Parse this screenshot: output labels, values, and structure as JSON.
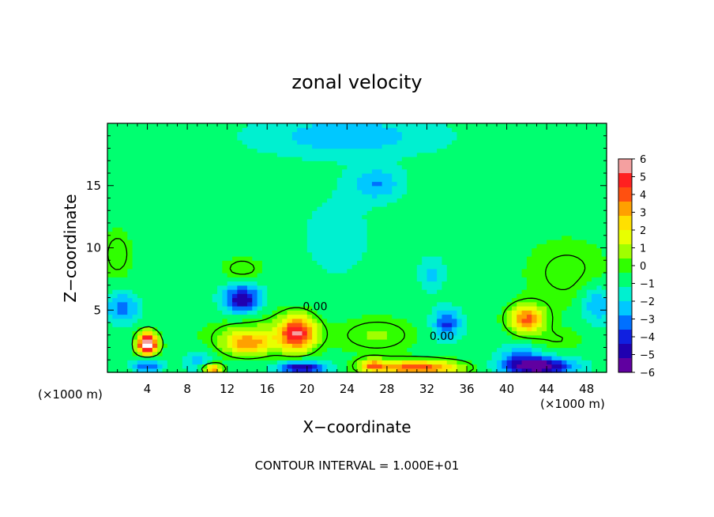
{
  "chart_data": {
    "type": "heatmap",
    "title": "zonal velocity",
    "xlabel": "X−coordinate",
    "ylabel": "Z−coordinate",
    "x_unit": "(×1000 m)",
    "footer": "CONTOUR INTERVAL = 1.000E+01",
    "xlim": [
      0,
      50
    ],
    "ylim": [
      0,
      20
    ],
    "x_ticks": [
      4,
      8,
      12,
      16,
      20,
      24,
      28,
      32,
      36,
      40,
      44,
      48
    ],
    "y_ticks": [
      5,
      10,
      15
    ],
    "colorbar": {
      "range": [
        -6,
        6
      ],
      "ticks": [
        6,
        5,
        4,
        3,
        2,
        1,
        0,
        -1,
        -2,
        -3,
        -4,
        -5,
        -6
      ],
      "tick_labels": [
        "6",
        "5",
        "4",
        "3",
        "2",
        "1",
        "0",
        "−1",
        "−2",
        "−3",
        "−4",
        "−5",
        "−6"
      ],
      "colors": [
        "#f4a0a0",
        "#ff2020",
        "#ff5010",
        "#ffa000",
        "#ffe000",
        "#e8ff00",
        "#a0ff00",
        "#30ff00",
        "#00ff70",
        "#00f0d0",
        "#00c8ff",
        "#0070ff",
        "#1020e0",
        "#2000b0",
        "#6000a0"
      ]
    },
    "background_value": -0.8,
    "features": [
      {
        "x": 4.0,
        "z": 2.3,
        "value": 8,
        "sx": 1.0,
        "sz": 0.9
      },
      {
        "x": 4.0,
        "z": 0.6,
        "value": -3,
        "sx": 1.4,
        "sz": 0.6
      },
      {
        "x": 1.5,
        "z": 5.2,
        "value": -2.5,
        "sx": 1.6,
        "sz": 1.2
      },
      {
        "x": 13.5,
        "z": 5.9,
        "value": -4.5,
        "sx": 1.8,
        "sz": 1.1
      },
      {
        "x": 19.0,
        "z": 3.2,
        "value": 5.5,
        "sx": 1.8,
        "sz": 1.4
      },
      {
        "x": 14.0,
        "z": 2.3,
        "value": 3.2,
        "sx": 2.2,
        "sz": 0.9
      },
      {
        "x": 19.5,
        "z": 0.4,
        "value": -4.5,
        "sx": 2.5,
        "sz": 0.5
      },
      {
        "x": 9.0,
        "z": 0.9,
        "value": -1.5,
        "sx": 1.5,
        "sz": 0.8
      },
      {
        "x": 10.5,
        "z": 0.3,
        "value": 4.5,
        "sx": 1.0,
        "sz": 0.4
      },
      {
        "x": 31.0,
        "z": 0.4,
        "value": 5.0,
        "sx": 4.5,
        "sz": 0.6
      },
      {
        "x": 26.5,
        "z": 0.6,
        "value": 3.0,
        "sx": 1.2,
        "sz": 0.5
      },
      {
        "x": 34.0,
        "z": 3.9,
        "value": -3.0,
        "sx": 1.4,
        "sz": 1.2
      },
      {
        "x": 32.5,
        "z": 7.9,
        "value": -1.5,
        "sx": 1.2,
        "sz": 1.4
      },
      {
        "x": 42.0,
        "z": 4.3,
        "value": 4.5,
        "sx": 1.8,
        "sz": 1.1
      },
      {
        "x": 43.0,
        "z": 0.5,
        "value": -5.5,
        "sx": 3.5,
        "sz": 0.7
      },
      {
        "x": 41.5,
        "z": 1.5,
        "value": -2.0,
        "sx": 2.0,
        "sz": 0.8
      },
      {
        "x": 49.0,
        "z": 5.5,
        "value": -2.2,
        "sx": 1.5,
        "sz": 1.5
      },
      {
        "x": 46.0,
        "z": 8.0,
        "value": 1.0,
        "sx": 4.5,
        "sz": 3.0
      },
      {
        "x": 45.0,
        "z": 2.6,
        "value": 0.8,
        "sx": 3.0,
        "sz": 1.0
      },
      {
        "x": 13.5,
        "z": 8.3,
        "value": 1.2,
        "sx": 2.0,
        "sz": 1.0
      },
      {
        "x": 1.0,
        "z": 9.5,
        "value": 1.2,
        "sx": 1.5,
        "sz": 2.0
      },
      {
        "x": 24.0,
        "z": 19.0,
        "value": -1.8,
        "sx": 9.0,
        "sz": 1.6
      },
      {
        "x": 27.0,
        "z": 15.2,
        "value": -2.0,
        "sx": 2.5,
        "sz": 1.3
      },
      {
        "x": 15.0,
        "z": 3.0,
        "value": 1.5,
        "sx": 5.0,
        "sz": 1.5
      },
      {
        "x": 27.0,
        "z": 3.0,
        "value": 1.3,
        "sx": 4.0,
        "sz": 1.5
      },
      {
        "x": 23.0,
        "z": 11.0,
        "value": -0.7,
        "sx": 4.0,
        "sz": 4.0
      }
    ],
    "contour_labels": [
      {
        "text": "0.00",
        "x": 20.8,
        "z": 5.0
      },
      {
        "text": "0.00",
        "x": 33.5,
        "z": 2.6
      }
    ]
  }
}
